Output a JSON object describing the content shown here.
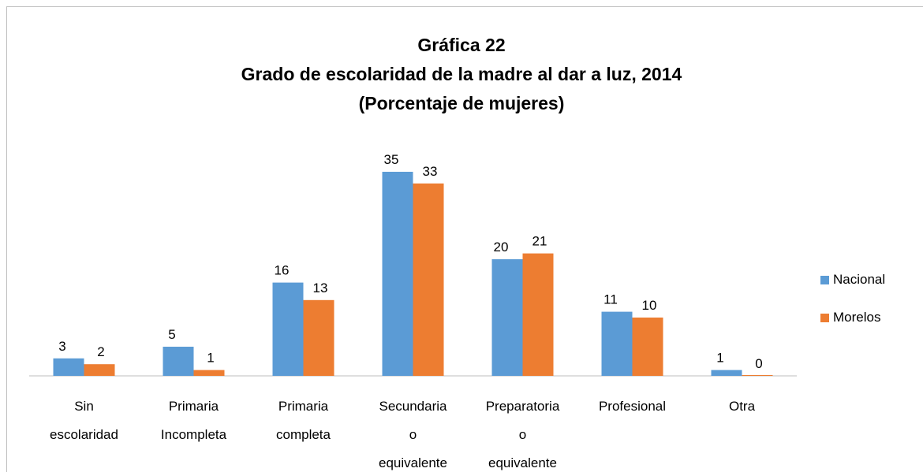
{
  "chart_data": {
    "type": "bar",
    "title": "Gráfica 22",
    "subtitle": [
      "Grado de escolaridad de la madre al dar a luz, 2014",
      "(Porcentaje de mujeres)"
    ],
    "categories": [
      "Sin escolaridad",
      "Primaria Incompleta",
      "Primaria completa",
      "Secundaria o equivalente",
      "Preparatoria o equivalente",
      "Profesional",
      "Otra"
    ],
    "series": [
      {
        "name": "Nacional",
        "color": "#5b9bd5",
        "values": [
          3,
          5,
          16,
          35,
          20,
          11,
          1
        ]
      },
      {
        "name": "Morelos",
        "color": "#ed7d31",
        "values": [
          2,
          1,
          13,
          33,
          21,
          10,
          0
        ]
      }
    ],
    "legend": "right"
  }
}
